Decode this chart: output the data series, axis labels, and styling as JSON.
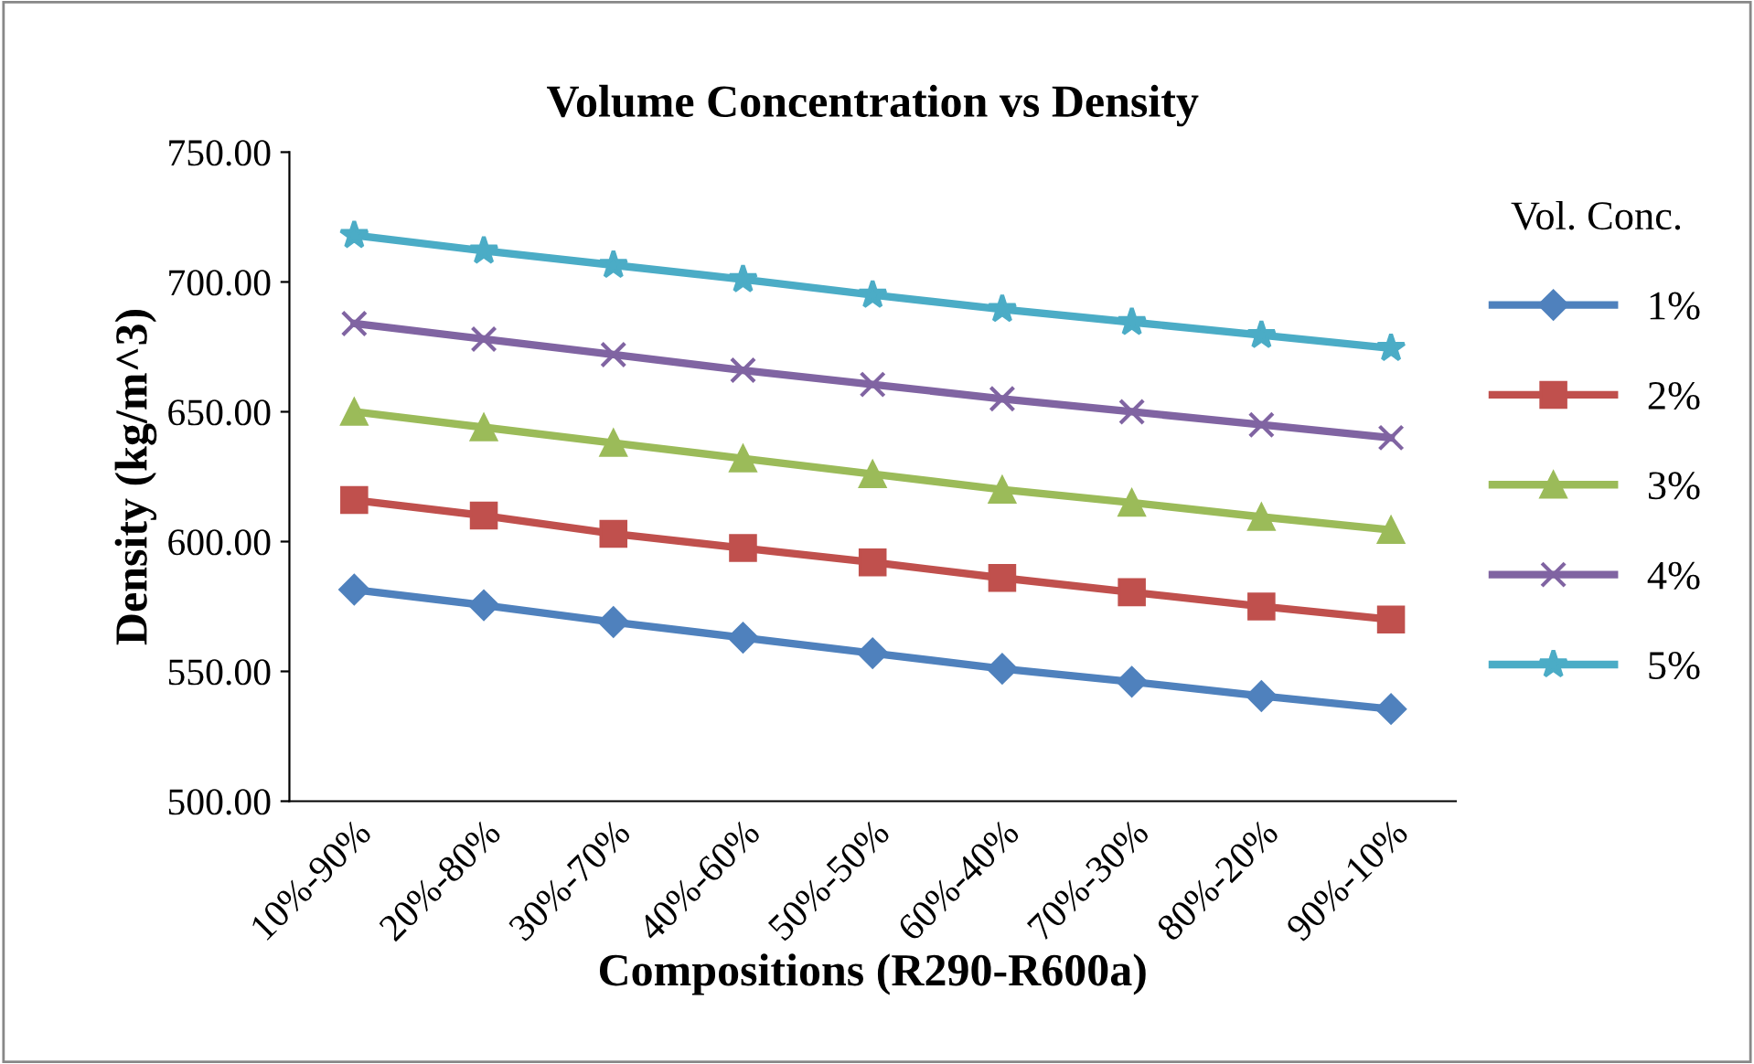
{
  "chart_data": {
    "type": "line",
    "title": "Volume Concentration vs Density",
    "xlabel": "Compositions (R290-R600a)",
    "ylabel": "Density (kg/m^3)",
    "legend_title": "Vol. Conc.",
    "legend": "right",
    "categories": [
      "10%-90%",
      "20%-80%",
      "30%-70%",
      "40%-60%",
      "50%-50%",
      "60%-40%",
      "70%-30%",
      "80%-20%",
      "90%-10%"
    ],
    "series": [
      {
        "name": "1%",
        "color": "#4f81bd",
        "marker": "diamond",
        "values": [
          581.5,
          575.5,
          569,
          563,
          557,
          551,
          546,
          540.5,
          535.5
        ]
      },
      {
        "name": "2%",
        "color": "#c0504d",
        "marker": "square",
        "values": [
          616,
          610,
          603,
          597.5,
          592,
          586,
          580.5,
          575,
          570
        ]
      },
      {
        "name": "3%",
        "color": "#9bbb59",
        "marker": "triangle",
        "values": [
          650,
          644,
          638,
          632,
          626,
          620,
          615,
          609.5,
          604.5
        ]
      },
      {
        "name": "4%",
        "color": "#8064a2",
        "marker": "cross",
        "values": [
          684,
          678,
          672,
          666,
          660.5,
          655,
          650,
          645,
          640
        ]
      },
      {
        "name": "5%",
        "color": "#4bacc6",
        "marker": "star",
        "values": [
          718,
          712,
          706.5,
          701,
          695,
          689.5,
          684.5,
          679.5,
          674.5
        ]
      }
    ],
    "ylim": [
      500,
      750
    ],
    "yticks": [
      {
        "value": 500,
        "label": "500.00"
      },
      {
        "value": 550,
        "label": "550.00"
      },
      {
        "value": 600,
        "label": "600.00"
      },
      {
        "value": 650,
        "label": "650.00"
      },
      {
        "value": 700,
        "label": "700.00"
      },
      {
        "value": 750,
        "label": "750.00"
      }
    ],
    "grid": false,
    "line_style": "solid"
  }
}
